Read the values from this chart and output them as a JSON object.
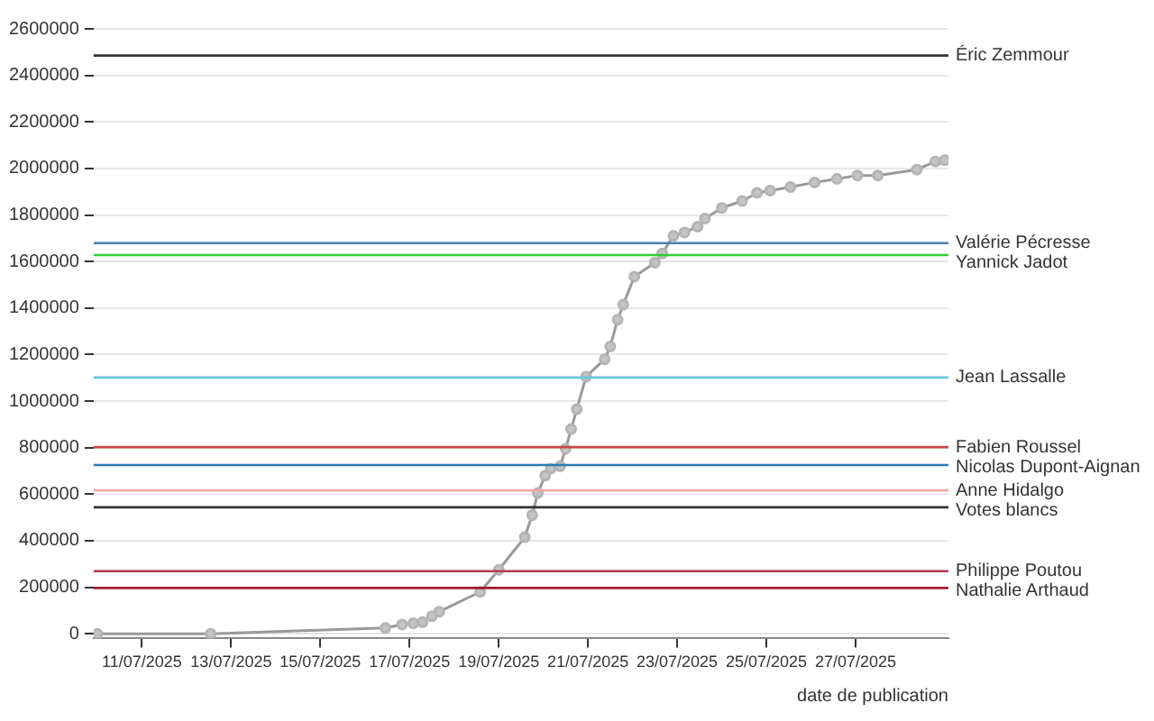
{
  "chart_data": {
    "type": "line",
    "xlabel": "date de publication",
    "x": [
      "2025-07-10T00:00",
      "2025-07-12T13:00",
      "2025-07-16T11:00",
      "2025-07-16T20:00",
      "2025-07-17T02:00",
      "2025-07-17T07:00",
      "2025-07-17T12:00",
      "2025-07-17T16:00",
      "2025-07-18T14:00",
      "2025-07-19T00:00",
      "2025-07-19T14:00",
      "2025-07-19T18:00",
      "2025-07-19T21:00",
      "2025-07-20T01:00",
      "2025-07-20T04:00",
      "2025-07-20T09:00",
      "2025-07-20T12:00",
      "2025-07-20T15:00",
      "2025-07-20T18:00",
      "2025-07-20T23:00",
      "2025-07-21T09:00",
      "2025-07-21T12:00",
      "2025-07-21T16:00",
      "2025-07-21T19:00",
      "2025-07-22T01:00",
      "2025-07-22T12:00",
      "2025-07-22T16:00",
      "2025-07-22T22:00",
      "2025-07-23T04:00",
      "2025-07-23T11:00",
      "2025-07-23T15:00",
      "2025-07-24T00:00",
      "2025-07-24T11:00",
      "2025-07-24T19:00",
      "2025-07-25T02:00",
      "2025-07-25T13:00",
      "2025-07-26T02:00",
      "2025-07-26T14:00",
      "2025-07-27T01:00",
      "2025-07-27T12:00",
      "2025-07-28T09:00",
      "2025-07-28T19:00",
      "2025-07-29T00:00"
    ],
    "series": [
      {
        "color": "#999999",
        "values": [
          0,
          0,
          25000,
          40000,
          45000,
          50000,
          75000,
          95000,
          180000,
          275000,
          415000,
          510000,
          605000,
          680000,
          710000,
          720000,
          795000,
          880000,
          965000,
          1105000,
          1180000,
          1235000,
          1350000,
          1415000,
          1535000,
          1595000,
          1635000,
          1710000,
          1725000,
          1750000,
          1785000,
          1830000,
          1860000,
          1895000,
          1905000,
          1920000,
          1940000,
          1955000,
          1970000,
          1970000,
          1995000,
          2030000,
          2035000
        ]
      }
    ],
    "marker": "circle",
    "line_style": "solid",
    "grid": "y",
    "legend": false,
    "xlim": [
      "2025-07-09T22:00",
      "2025-07-29T02:00"
    ],
    "xticks": [
      {
        "value": "2025-07-11",
        "label": "11/07/2025"
      },
      {
        "value": "2025-07-13",
        "label": "13/07/2025"
      },
      {
        "value": "2025-07-15",
        "label": "15/07/2025"
      },
      {
        "value": "2025-07-17",
        "label": "17/07/2025"
      },
      {
        "value": "2025-07-19",
        "label": "19/07/2025"
      },
      {
        "value": "2025-07-21",
        "label": "21/07/2025"
      },
      {
        "value": "2025-07-23",
        "label": "23/07/2025"
      },
      {
        "value": "2025-07-25",
        "label": "25/07/2025"
      },
      {
        "value": "2025-07-27",
        "label": "27/07/2025"
      }
    ],
    "ylim": [
      -20000,
      2600000
    ],
    "yticks": [
      0,
      200000,
      400000,
      600000,
      800000,
      1000000,
      1200000,
      1400000,
      1600000,
      1800000,
      2000000,
      2200000,
      2400000,
      2600000
    ],
    "ref_lines": [
      {
        "axis": "y",
        "value": 2485226,
        "label": "Éric Zemmour",
        "color": "#333333"
      },
      {
        "axis": "y",
        "value": 1679001,
        "label": "Valérie Pécresse",
        "color": "#4a7fb5"
      },
      {
        "axis": "y",
        "value": 1627853,
        "label": "Yannick Jadot",
        "color": "#33cc33"
      },
      {
        "axis": "y",
        "value": 1101387,
        "label": "Jean Lassalle",
        "color": "#66c5e0"
      },
      {
        "axis": "y",
        "value": 802422,
        "label": "Fabien Roussel",
        "color": "#c44a4a"
      },
      {
        "axis": "y",
        "value": 725176,
        "label": "Nicolas Dupont-Aignan",
        "color": "#2c7bb6"
      },
      {
        "axis": "y",
        "value": 616478,
        "label": "Anne Hidalgo",
        "color": "#f4a6a6"
      },
      {
        "axis": "y",
        "value": 543609,
        "label": "Votes blancs",
        "color": "#333333"
      },
      {
        "axis": "y",
        "value": 268904,
        "label": "Philippe Poutou",
        "color": "#b03a52"
      },
      {
        "axis": "y",
        "value": 197094,
        "label": "Nathalie Arthaud",
        "color": "#a01a2a"
      }
    ]
  }
}
